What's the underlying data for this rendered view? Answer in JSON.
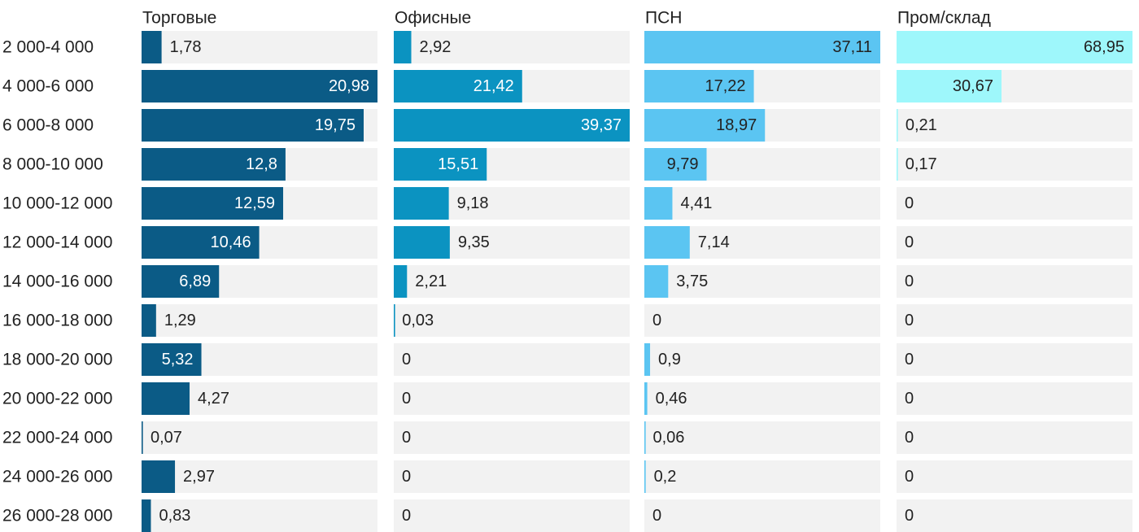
{
  "chart_data": {
    "type": "bar",
    "categories": [
      "2 000-4 000",
      "4 000-6 000",
      "6 000-8 000",
      "8 000-10 000",
      "10 000-12 000",
      "12 000-14 000",
      "14 000-16 000",
      "16 000-18 000",
      "18 000-20 000",
      "20 000-22 000",
      "22 000-24 000",
      "24 000-26 000",
      "26 000-28 000"
    ],
    "series": [
      {
        "name": "Торговые",
        "color": "#0b5b86",
        "label_inside_color": "#ffffff",
        "values": [
          1.78,
          20.98,
          19.75,
          12.8,
          12.59,
          10.46,
          6.89,
          1.29,
          5.32,
          4.27,
          0.07,
          2.97,
          0.83
        ],
        "labels": [
          "1,78",
          "20,98",
          "19,75",
          "12,8",
          "12,59",
          "10,46",
          "6,89",
          "1,29",
          "5,32",
          "4,27",
          "0,07",
          "2,97",
          "0,83"
        ]
      },
      {
        "name": "Офисные",
        "color": "#0b93c1",
        "label_inside_color": "#ffffff",
        "values": [
          2.92,
          21.42,
          39.37,
          15.51,
          9.18,
          9.35,
          2.21,
          0.03,
          0,
          0,
          0,
          0,
          0
        ],
        "labels": [
          "2,92",
          "21,42",
          "39,37",
          "15,51",
          "9,18",
          "9,35",
          "2,21",
          "0,03",
          "0",
          "0",
          "0",
          "0",
          "0"
        ]
      },
      {
        "name": "ПСН",
        "color": "#5bc5f2",
        "label_inside_color": "#222222",
        "values": [
          37.11,
          17.22,
          18.97,
          9.79,
          4.41,
          7.14,
          3.75,
          0,
          0.9,
          0.46,
          0.06,
          0.2,
          0
        ],
        "labels": [
          "37,11",
          "17,22",
          "18,97",
          "9,79",
          "4,41",
          "7,14",
          "3,75",
          "0",
          "0,9",
          "0,46",
          "0,06",
          "0,2",
          "0"
        ]
      },
      {
        "name": "Пром/склад",
        "color": "#9ef7fb",
        "label_inside_color": "#222222",
        "values": [
          68.95,
          30.67,
          0.21,
          0.17,
          0,
          0,
          0,
          0,
          0,
          0,
          0,
          0,
          0
        ],
        "labels": [
          "68,95",
          "30,67",
          "0,21",
          "0,17",
          "0",
          "0",
          "0",
          "0",
          "0",
          "0",
          "0",
          "0",
          "0"
        ]
      }
    ],
    "background_color": "#f2f2f2",
    "text_color": "#222222"
  }
}
